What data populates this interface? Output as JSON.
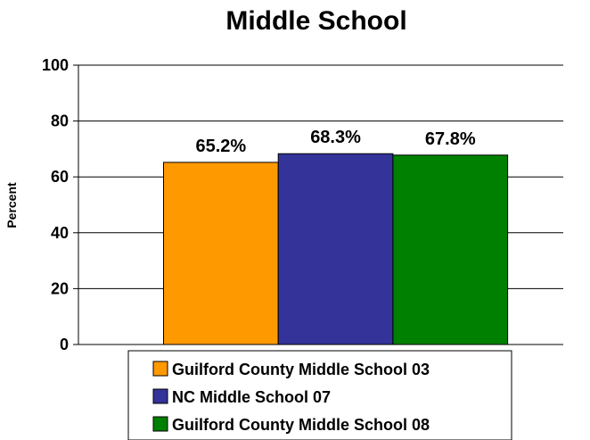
{
  "chart_data": {
    "type": "bar",
    "title": "Middle School",
    "ylabel": "Percent",
    "xlabel": "",
    "ylim": [
      0,
      100
    ],
    "yticks": [
      0,
      20,
      40,
      60,
      80,
      100
    ],
    "grid": true,
    "legend": "bottom",
    "series": [
      {
        "name": "Guilford County Middle School 03",
        "value": 65.2,
        "label": "65.2%",
        "color": "#ff9900"
      },
      {
        "name": "NC Middle School 07",
        "value": 68.3,
        "label": "68.3%",
        "color": "#333399"
      },
      {
        "name": "Guilford County Middle School 08",
        "value": 67.8,
        "label": "67.8%",
        "color": "#008000"
      }
    ]
  }
}
